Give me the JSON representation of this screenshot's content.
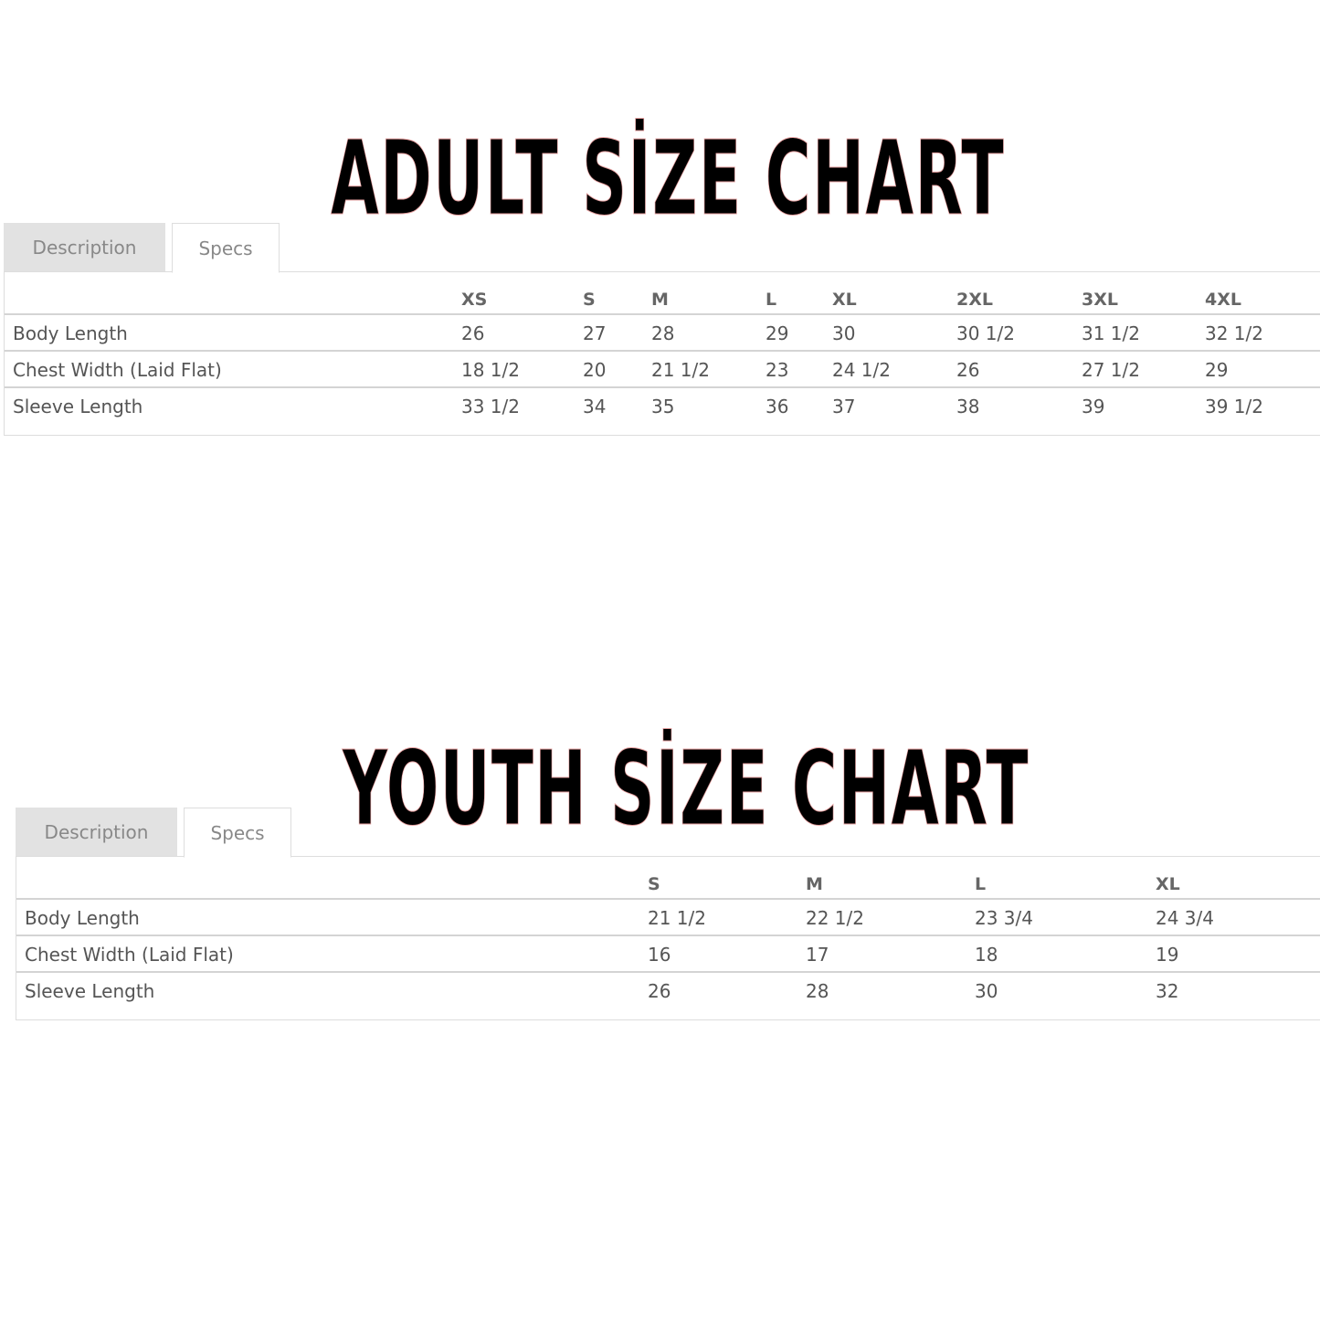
{
  "adult": {
    "title": "ADULT SİZE CHART",
    "tabs": [
      "Description",
      "Specs"
    ],
    "active_tab": "Specs",
    "columns": [
      "XS",
      "S",
      "M",
      "L",
      "XL",
      "2XL",
      "3XL",
      "4XL"
    ],
    "rows": [
      {
        "label": "Body Length",
        "values": [
          "26",
          "27",
          "28",
          "29",
          "30",
          "30 1/2",
          "31 1/2",
          "32 1/2"
        ]
      },
      {
        "label": "Chest Width (Laid Flat)",
        "values": [
          "18 1/2",
          "20",
          "21 1/2",
          "23",
          "24 1/2",
          "26",
          "27 1/2",
          "29"
        ]
      },
      {
        "label": "Sleeve Length",
        "values": [
          "33 1/2",
          "34",
          "35",
          "36",
          "37",
          "38",
          "39",
          "39 1/2"
        ]
      }
    ]
  },
  "youth": {
    "title": "YOUTH SİZE CHART",
    "tabs": [
      "Description",
      "Specs"
    ],
    "active_tab": "Specs",
    "columns": [
      "S",
      "M",
      "L",
      "XL"
    ],
    "rows": [
      {
        "label": "Body Length",
        "values": [
          "21 1/2",
          "22 1/2",
          "23 3/4",
          "24 3/4"
        ]
      },
      {
        "label": "Chest Width (Laid Flat)",
        "values": [
          "16",
          "17",
          "18",
          "19"
        ]
      },
      {
        "label": "Sleeve Length",
        "values": [
          "26",
          "28",
          "30",
          "32"
        ]
      }
    ]
  }
}
